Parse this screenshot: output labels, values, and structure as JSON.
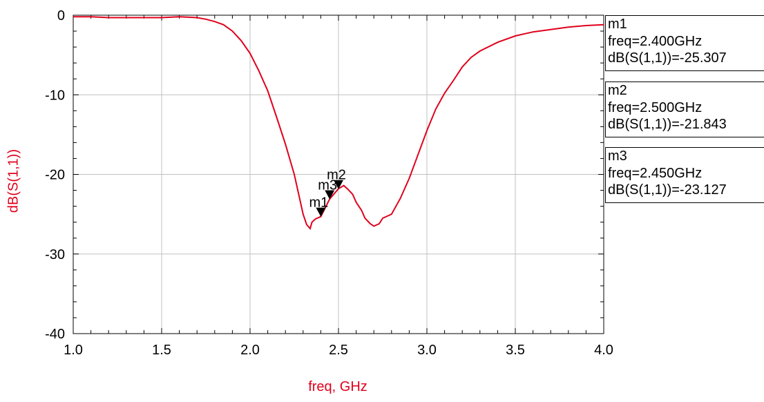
{
  "chart_data": {
    "type": "line",
    "title": "",
    "xlabel": "freq, GHz",
    "ylabel": "dB(S(1,1))",
    "xlim": [
      1.0,
      4.0
    ],
    "ylim": [
      -40,
      0
    ],
    "x_ticks": [
      "1.0",
      "1.5",
      "2.0",
      "2.5",
      "3.0",
      "3.5",
      "4.0"
    ],
    "y_ticks": [
      "0",
      "-10",
      "-20",
      "-30",
      "-40"
    ],
    "grid": true,
    "line_color": "#e0001b",
    "series": [
      {
        "name": "dB(S(1,1))",
        "x": [
          1.0,
          1.1,
          1.2,
          1.3,
          1.4,
          1.5,
          1.6,
          1.7,
          1.75,
          1.8,
          1.85,
          1.9,
          1.95,
          2.0,
          2.05,
          2.1,
          2.15,
          2.2,
          2.25,
          2.28,
          2.3,
          2.32,
          2.34,
          2.35,
          2.37,
          2.4,
          2.45,
          2.5,
          2.53,
          2.55,
          2.58,
          2.6,
          2.63,
          2.65,
          2.68,
          2.7,
          2.73,
          2.75,
          2.8,
          2.85,
          2.9,
          2.95,
          3.0,
          3.05,
          3.1,
          3.15,
          3.2,
          3.25,
          3.3,
          3.4,
          3.5,
          3.6,
          3.7,
          3.8,
          3.9,
          4.0
        ],
        "y": [
          -0.2,
          -0.2,
          -0.3,
          -0.3,
          -0.3,
          -0.3,
          -0.2,
          -0.3,
          -0.5,
          -0.8,
          -1.2,
          -2.0,
          -3.2,
          -4.8,
          -7.0,
          -9.5,
          -12.8,
          -16.2,
          -20.0,
          -23.0,
          -25.0,
          -26.3,
          -26.8,
          -26.0,
          -25.6,
          -25.3,
          -23.1,
          -21.8,
          -21.4,
          -21.8,
          -22.5,
          -23.5,
          -24.5,
          -25.5,
          -26.2,
          -26.5,
          -26.2,
          -25.5,
          -25.0,
          -23.0,
          -20.5,
          -17.5,
          -14.5,
          -11.8,
          -9.8,
          -8.2,
          -6.5,
          -5.3,
          -4.5,
          -3.4,
          -2.6,
          -2.1,
          -1.8,
          -1.5,
          -1.3,
          -1.2
        ]
      }
    ],
    "markers": [
      {
        "label": "m1",
        "x": 2.4,
        "y": -25.307,
        "freq_text": "freq=2.400GHz",
        "value_text": "dB(S(1,1))=-25.307"
      },
      {
        "label": "m2",
        "x": 2.5,
        "y": -21.843,
        "freq_text": "freq=2.500GHz",
        "value_text": "dB(S(1,1))=-21.843"
      },
      {
        "label": "m3",
        "x": 2.45,
        "y": -23.127,
        "freq_text": "freq=2.450GHz",
        "value_text": "dB(S(1,1))=-23.127"
      }
    ]
  }
}
